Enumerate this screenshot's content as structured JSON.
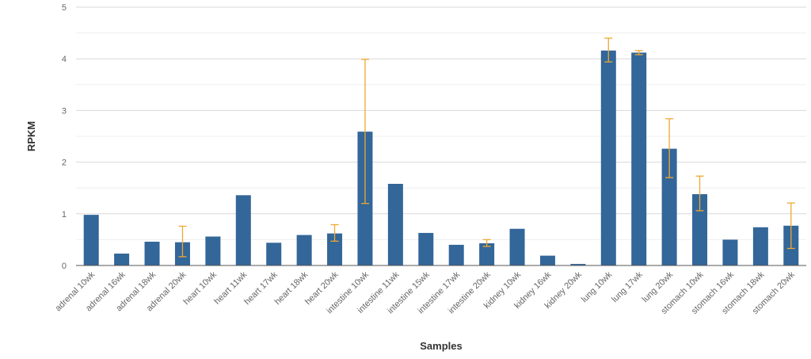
{
  "chart_data": {
    "type": "bar",
    "xlabel": "Samples",
    "ylabel": "RPKM",
    "ylim": [
      0,
      5
    ],
    "yticks": [
      0,
      1,
      2,
      3,
      4,
      5
    ],
    "minor_grid_step": 0.5,
    "grid": true,
    "bar_color": "#336699",
    "error_color": "#f0a830",
    "categories": [
      "adrenal 10wk",
      "adrenal 16wk",
      "adrenal 18wk",
      "adrenal 20wk",
      "heart 10wk",
      "heart 11wk",
      "heart 17wk",
      "heart 18wk",
      "heart 20wk",
      "intestine 10wk",
      "intestine 11wk",
      "intestine 15wk",
      "intestine 17wk",
      "intestine 20wk",
      "kidney 10wk",
      "kidney 16wk",
      "kidney 20wk",
      "lung 10wk",
      "lung 17wk",
      "lung 20wk",
      "stomach 10wk",
      "stomach 16wk",
      "stomach 18wk",
      "stomach 20wk"
    ],
    "values": [
      0.98,
      0.23,
      0.46,
      0.45,
      0.56,
      1.36,
      0.44,
      0.59,
      0.62,
      2.59,
      1.58,
      0.63,
      0.4,
      0.43,
      0.71,
      0.19,
      0.03,
      4.16,
      4.12,
      2.26,
      1.38,
      0.5,
      0.74,
      0.77
    ],
    "error_bars": [
      null,
      null,
      null,
      [
        0.17,
        0.76
      ],
      null,
      null,
      null,
      null,
      [
        0.47,
        0.79
      ],
      [
        1.2,
        3.99
      ],
      null,
      null,
      null,
      [
        0.37,
        0.5
      ],
      null,
      null,
      null,
      [
        3.94,
        4.4
      ],
      [
        4.08,
        4.16
      ],
      [
        1.7,
        2.84
      ],
      [
        1.06,
        1.73
      ],
      null,
      null,
      [
        0.33,
        1.21
      ]
    ]
  }
}
